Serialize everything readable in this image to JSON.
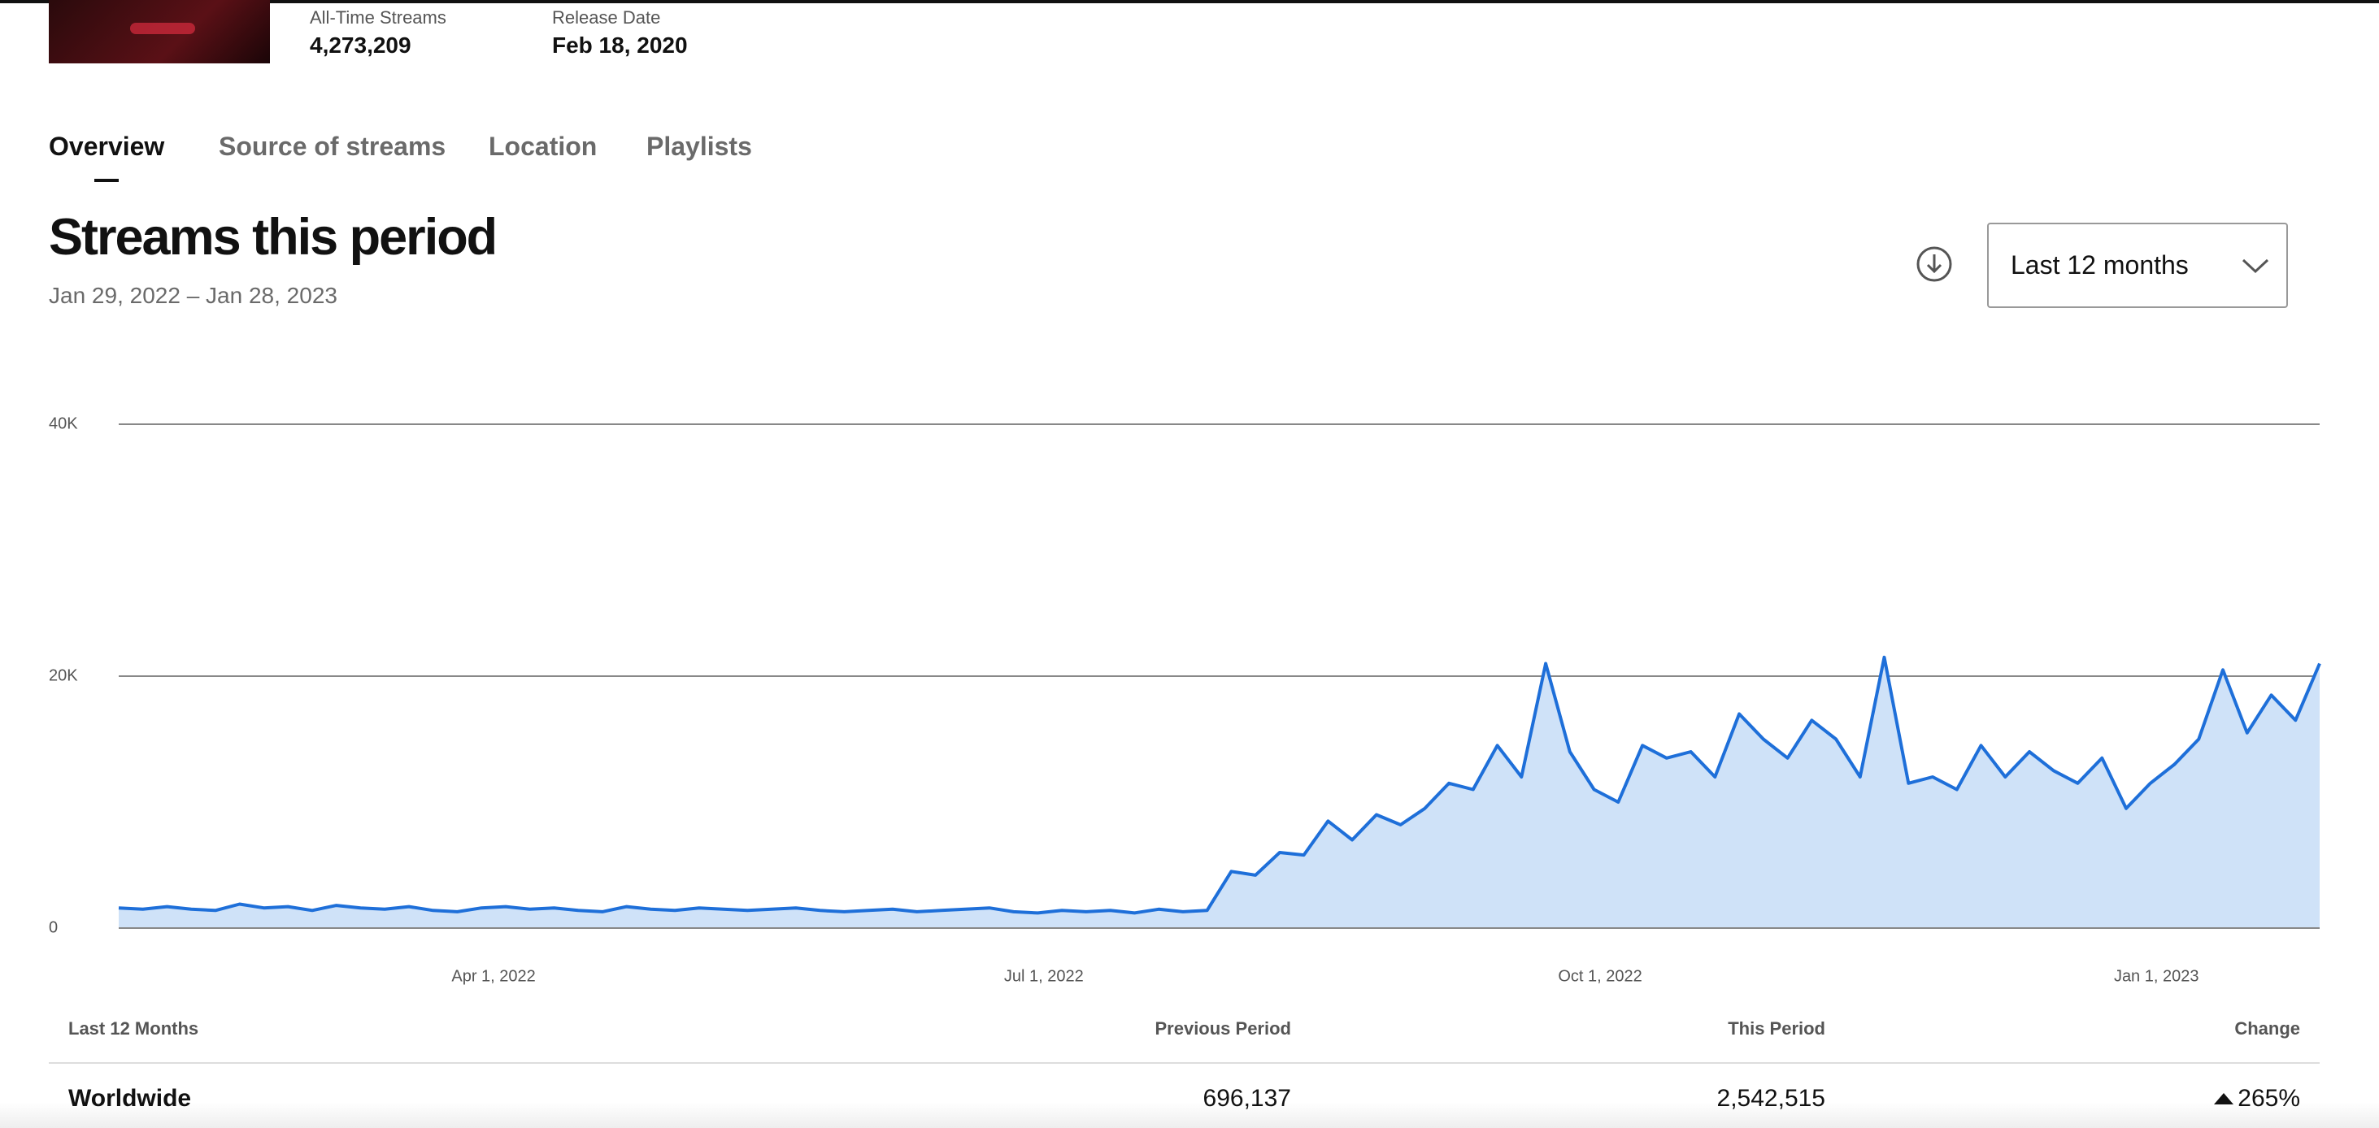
{
  "header": {
    "all_time_streams_label": "All-Time Streams",
    "all_time_streams": "4,273,209",
    "release_date_label": "Release Date",
    "release_date": "Feb 18, 2020"
  },
  "tabs": [
    "Overview",
    "Source of streams",
    "Location",
    "Playlists"
  ],
  "period_selector": "Last 12 months",
  "chart_data": {
    "type": "area",
    "title": "Streams this period",
    "subtitle": "Jan 29, 2022 – Jan 28, 2023",
    "x": [
      "2022-01-29",
      "2022-02-02",
      "2022-02-06",
      "2022-02-10",
      "2022-02-14",
      "2022-02-18",
      "2022-02-22",
      "2022-02-26",
      "2022-03-02",
      "2022-03-06",
      "2022-03-10",
      "2022-03-14",
      "2022-03-18",
      "2022-03-22",
      "2022-03-26",
      "2022-03-30",
      "2022-04-03",
      "2022-04-07",
      "2022-04-11",
      "2022-04-15",
      "2022-04-19",
      "2022-04-23",
      "2022-04-27",
      "2022-05-01",
      "2022-05-05",
      "2022-05-09",
      "2022-05-13",
      "2022-05-17",
      "2022-05-21",
      "2022-05-25",
      "2022-05-29",
      "2022-06-02",
      "2022-06-06",
      "2022-06-10",
      "2022-06-14",
      "2022-06-18",
      "2022-06-22",
      "2022-06-26",
      "2022-06-30",
      "2022-07-04",
      "2022-07-08",
      "2022-07-12",
      "2022-07-16",
      "2022-07-20",
      "2022-07-24",
      "2022-07-28",
      "2022-08-01",
      "2022-08-05",
      "2022-08-09",
      "2022-08-13",
      "2022-08-17",
      "2022-08-21",
      "2022-08-25",
      "2022-08-29",
      "2022-09-02",
      "2022-09-06",
      "2022-09-10",
      "2022-09-14",
      "2022-09-18",
      "2022-09-22",
      "2022-09-26",
      "2022-09-30",
      "2022-10-04",
      "2022-10-08",
      "2022-10-12",
      "2022-10-16",
      "2022-10-20",
      "2022-10-24",
      "2022-10-28",
      "2022-11-01",
      "2022-11-05",
      "2022-11-09",
      "2022-11-13",
      "2022-11-17",
      "2022-11-21",
      "2022-11-25",
      "2022-11-29",
      "2022-12-03",
      "2022-12-07",
      "2022-12-11",
      "2022-12-15",
      "2022-12-19",
      "2022-12-23",
      "2022-12-27",
      "2022-12-31",
      "2023-01-04",
      "2023-01-08",
      "2023-01-12",
      "2023-01-16",
      "2023-01-20",
      "2023-01-24",
      "2023-01-28"
    ],
    "series": [
      {
        "color": "#1e6fd9",
        "area_color": "#cfe2f8",
        "values": [
          1600,
          1500,
          1700,
          1500,
          1400,
          1900,
          1600,
          1700,
          1400,
          1800,
          1600,
          1500,
          1700,
          1400,
          1300,
          1600,
          1700,
          1500,
          1600,
          1400,
          1300,
          1700,
          1500,
          1400,
          1600,
          1500,
          1400,
          1500,
          1600,
          1400,
          1300,
          1400,
          1500,
          1300,
          1400,
          1500,
          1600,
          1300,
          1200,
          1400,
          1300,
          1400,
          1200,
          1500,
          1300,
          1400,
          4500,
          4200,
          6000,
          5800,
          8500,
          7000,
          9000,
          8200,
          9500,
          11500,
          11000,
          14500,
          12000,
          21000,
          14000,
          11000,
          10000,
          14500,
          13500,
          14000,
          12000,
          17000,
          15000,
          13500,
          16500,
          15000,
          12000,
          21500,
          11500,
          12000,
          11000,
          14500,
          12000,
          14000,
          12500,
          11500,
          13500,
          9500,
          11500,
          13000,
          15000,
          20500,
          15500,
          18500,
          16500,
          21000
        ]
      }
    ],
    "xlim": [
      "2022-01-29",
      "2023-01-28"
    ],
    "xticks": [
      {
        "value": "2022-04-01",
        "label": "Apr 1, 2022"
      },
      {
        "value": "2022-07-01",
        "label": "Jul 1, 2022"
      },
      {
        "value": "2022-10-01",
        "label": "Oct 1, 2022"
      },
      {
        "value": "2023-01-01",
        "label": "Jan 1, 2023"
      }
    ],
    "ylim": [
      0,
      40000
    ],
    "yticks": [
      0,
      {
        "value": 20000,
        "label": "20K"
      },
      {
        "value": 40000,
        "label": "40K"
      }
    ],
    "grid": true
  },
  "table": {
    "columns": [
      "Last 12 Months",
      "Previous Period",
      "This Period",
      "Change"
    ],
    "rows": [
      [
        "Worldwide",
        "696,137",
        "2,542,515",
        "265%"
      ]
    ]
  }
}
